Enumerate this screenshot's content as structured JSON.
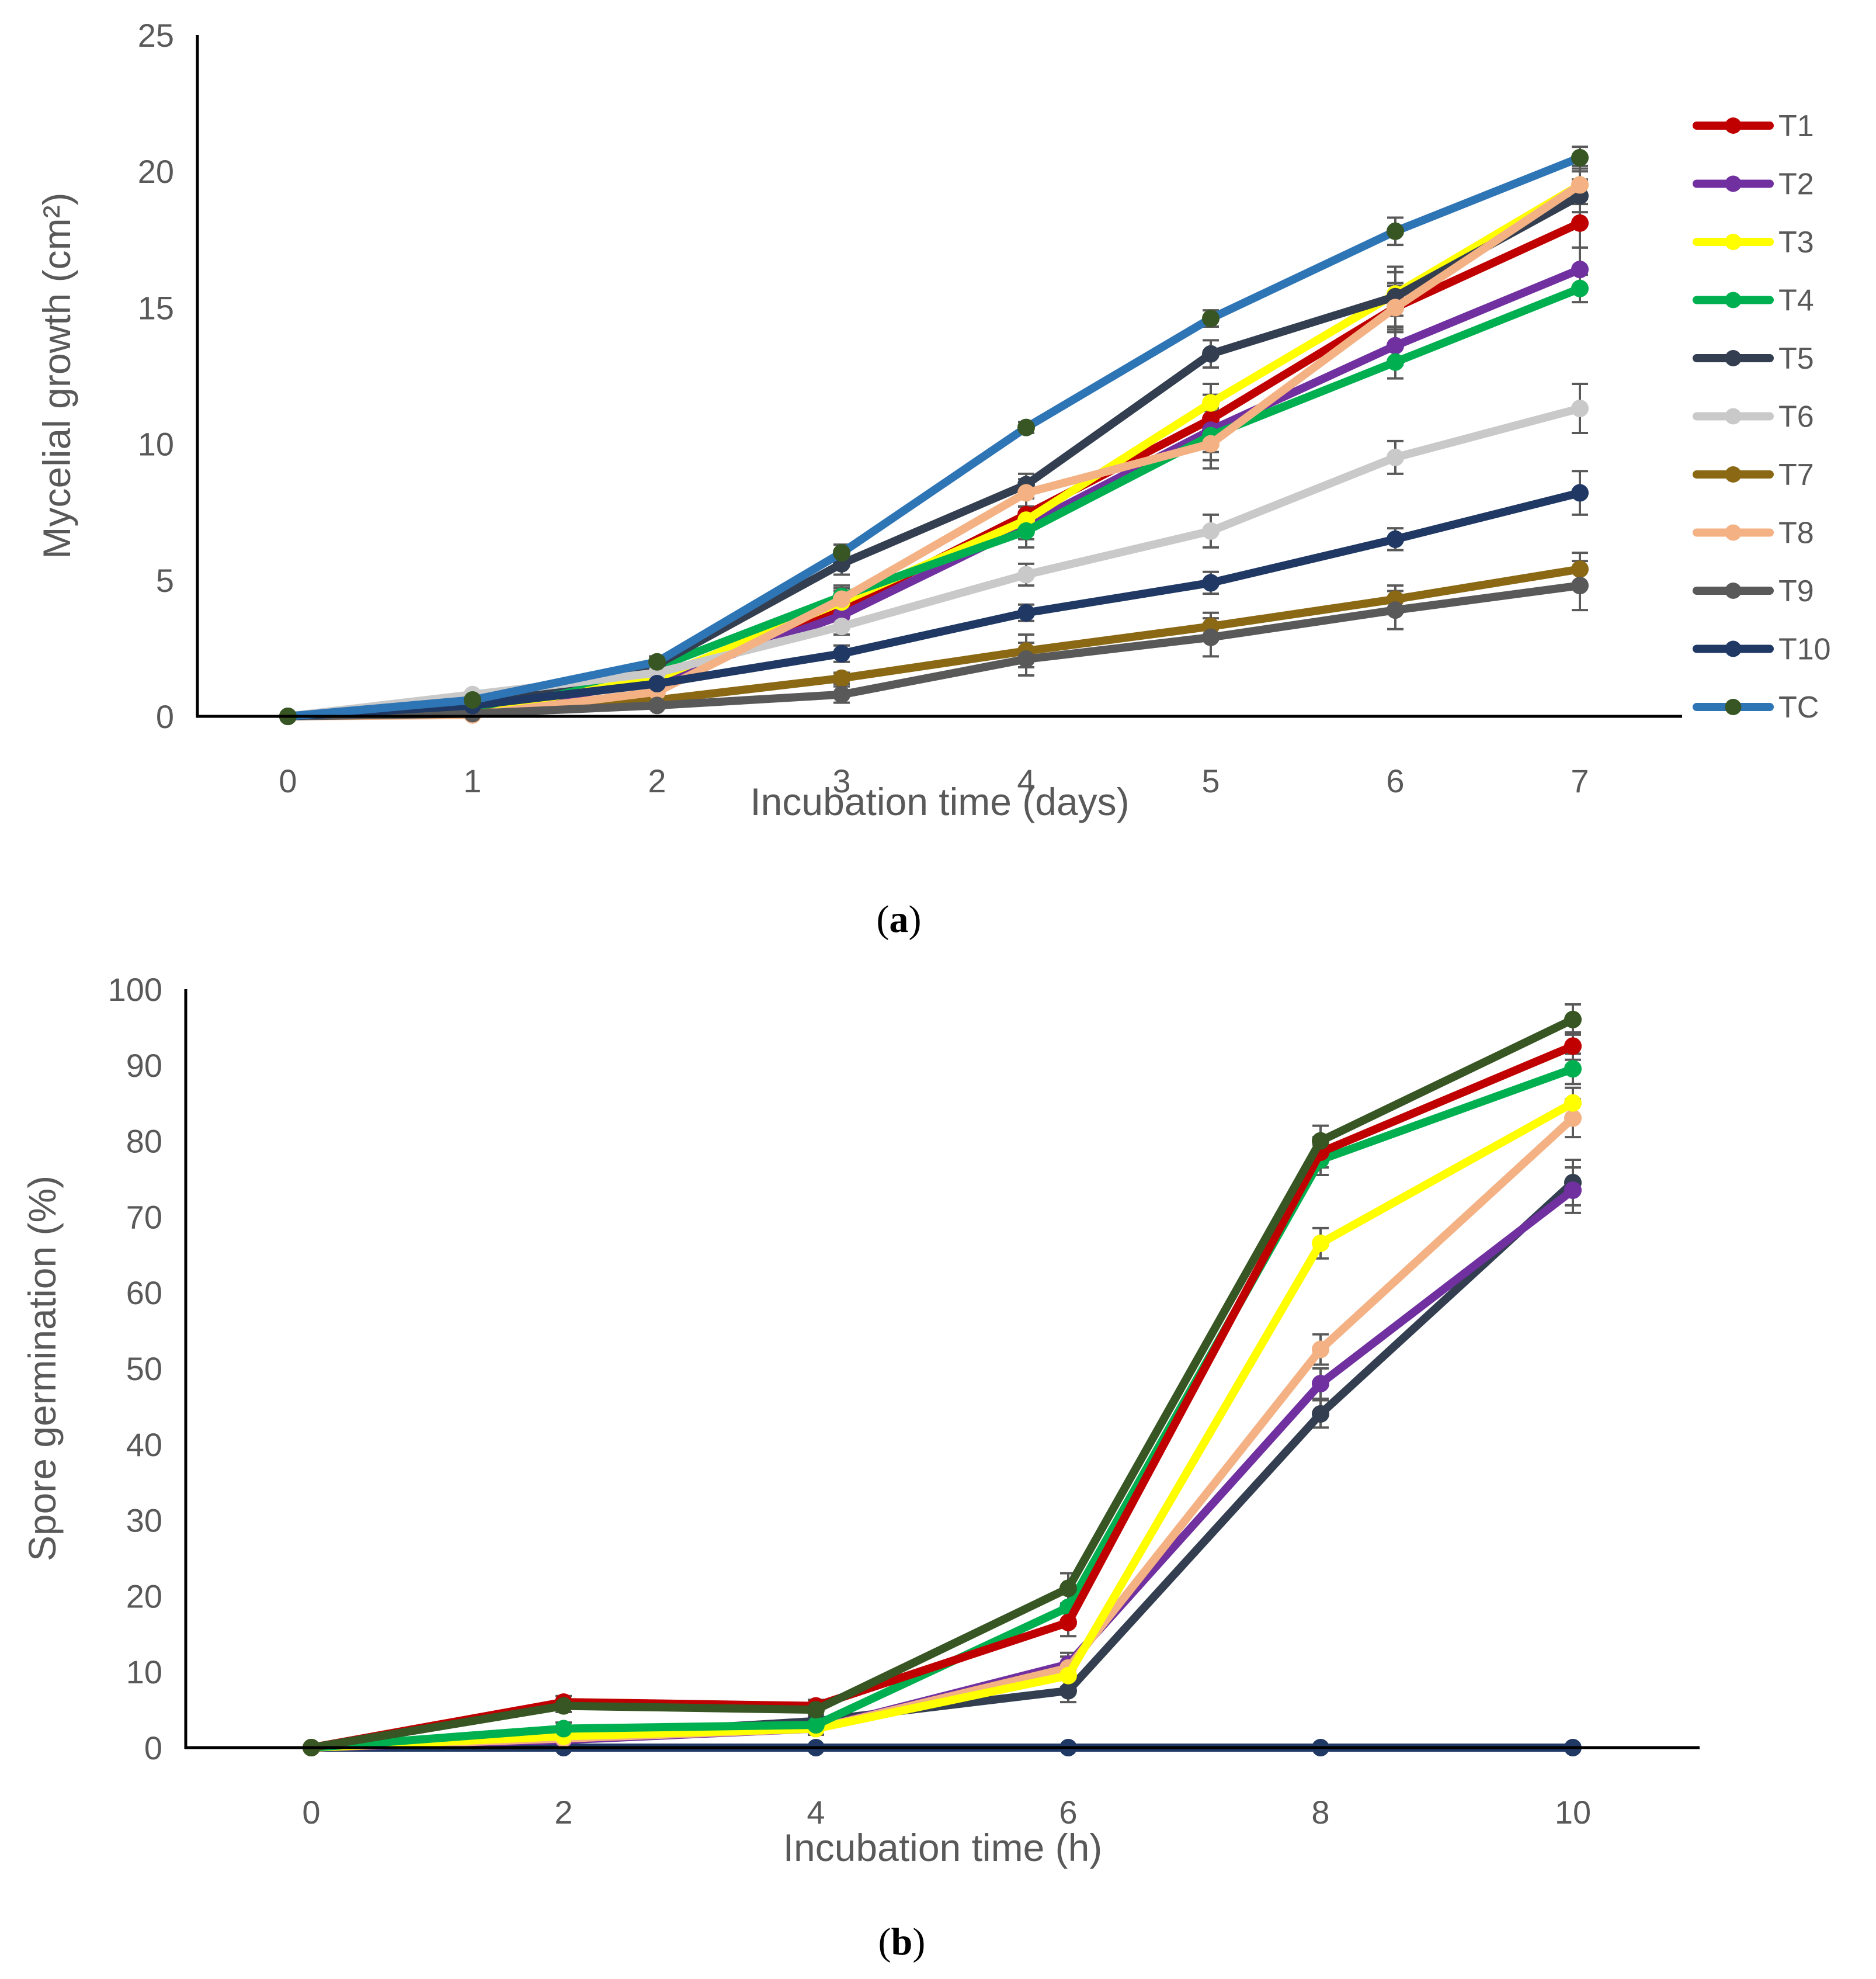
{
  "chart_data": [
    {
      "id": "a",
      "type": "line",
      "caption": "(a)",
      "caption_letter": "a",
      "xlabel": "Incubation time (days)",
      "ylabel": "Mycelial growth (cm²)",
      "x": [
        0,
        1,
        2,
        3,
        4,
        5,
        6,
        7
      ],
      "ylim": [
        0,
        25
      ],
      "yticks": [
        0,
        5,
        10,
        15,
        20,
        25
      ],
      "legend": "right",
      "series": [
        {
          "name": "T1",
          "color": "#C00000",
          "marker": "#C00000",
          "values": [
            0,
            0.2,
            1.3,
            4.0,
            7.4,
            10.9,
            15.0,
            18.1
          ],
          "err": [
            0,
            0.1,
            0.2,
            0.4,
            0.6,
            0.9,
            0.9,
            0.9
          ]
        },
        {
          "name": "T2",
          "color": "#7030A0",
          "marker": "#7030A0",
          "values": [
            0,
            0.2,
            1.3,
            3.7,
            7.0,
            10.5,
            13.6,
            16.4
          ],
          "err": [
            0,
            0.1,
            0.2,
            0.4,
            0.5,
            0.8,
            0.7,
            0.8
          ]
        },
        {
          "name": "T3",
          "color": "#FFFF00",
          "marker": "#FFFF00",
          "values": [
            0,
            0.2,
            1.4,
            4.2,
            7.2,
            11.5,
            15.5,
            19.5
          ],
          "err": [
            0,
            0.1,
            0.2,
            0.4,
            0.5,
            0.7,
            0.8,
            0.7
          ]
        },
        {
          "name": "T4",
          "color": "#00B050",
          "marker": "#00B050",
          "values": [
            0,
            0.3,
            1.8,
            4.4,
            6.8,
            10.3,
            13.0,
            15.7
          ],
          "err": [
            0,
            0.1,
            0.2,
            0.4,
            0.6,
            0.9,
            0.6,
            0.5
          ]
        },
        {
          "name": "T5",
          "color": "#333F50",
          "marker": "#333F50",
          "values": [
            0,
            0.4,
            1.9,
            5.6,
            8.5,
            13.3,
            15.4,
            19.1
          ],
          "err": [
            0,
            0.1,
            0.2,
            0.4,
            0.4,
            0.5,
            1.1,
            0.6
          ]
        },
        {
          "name": "T6",
          "color": "#C9C9C9",
          "marker": "#C9C9C9",
          "values": [
            0,
            0.8,
            1.6,
            3.3,
            5.2,
            6.8,
            9.5,
            11.3
          ],
          "err": [
            0,
            0.1,
            0.2,
            0.3,
            0.4,
            0.6,
            0.6,
            0.9
          ]
        },
        {
          "name": "T7",
          "color": "#8B6914",
          "marker": "#8B6914",
          "values": [
            0,
            0.1,
            0.6,
            1.4,
            2.4,
            3.3,
            4.3,
            5.4
          ],
          "err": [
            0,
            0.05,
            0.1,
            0.2,
            0.6,
            0.5,
            0.5,
            0.6
          ]
        },
        {
          "name": "T8",
          "color": "#F4B183",
          "marker": "#F4B183",
          "values": [
            0,
            0.05,
            0.9,
            4.3,
            8.2,
            10.0,
            15.0,
            19.5
          ],
          "err": [
            0,
            0.05,
            0.2,
            0.4,
            0.5,
            0.9,
            0.8,
            0.5
          ]
        },
        {
          "name": "T9",
          "color": "#595959",
          "marker": "#595959",
          "values": [
            0,
            0.1,
            0.4,
            0.8,
            2.1,
            2.9,
            3.9,
            4.8
          ],
          "err": [
            0,
            0.05,
            0.1,
            0.3,
            0.6,
            0.7,
            0.7,
            0.9
          ]
        },
        {
          "name": "T10",
          "color": "#203864",
          "marker": "#203864",
          "values": [
            0,
            0.4,
            1.2,
            2.3,
            3.8,
            4.9,
            6.5,
            8.2
          ],
          "err": [
            0,
            0.1,
            0.2,
            0.3,
            0.3,
            0.4,
            0.4,
            0.8
          ]
        },
        {
          "name": "TC",
          "color": "#2E75B6",
          "marker": "#375623",
          "values": [
            0,
            0.6,
            2.0,
            6.0,
            10.6,
            14.6,
            17.8,
            20.5
          ],
          "err": [
            0,
            0.1,
            0.2,
            0.3,
            0.2,
            0.3,
            0.5,
            0.4
          ]
        }
      ]
    },
    {
      "id": "b",
      "type": "line",
      "caption": "(b)",
      "caption_letter": "b",
      "xlabel": "Incubation time (h)",
      "ylabel": "Spore germination (%)",
      "x": [
        0,
        2,
        4,
        6,
        8,
        10
      ],
      "ylim": [
        0,
        100
      ],
      "yticks": [
        0,
        10,
        20,
        30,
        40,
        50,
        60,
        70,
        80,
        90,
        100
      ],
      "legend": "none",
      "series": [
        {
          "name": "T10",
          "color": "#203864",
          "marker": "#203864",
          "values": [
            0,
            0,
            0,
            0,
            0,
            0
          ],
          "err": [
            0,
            0,
            0,
            0,
            0,
            0
          ]
        },
        {
          "name": "T5",
          "color": "#333F50",
          "marker": "#333F50",
          "values": [
            0,
            1.5,
            3.5,
            7.5,
            44,
            74.5
          ],
          "err": [
            0,
            0.5,
            0.8,
            1.5,
            1.8,
            3.0
          ]
        },
        {
          "name": "T2",
          "color": "#7030A0",
          "marker": "#7030A0",
          "values": [
            0,
            1,
            2.5,
            11,
            48,
            73.5
          ],
          "err": [
            0,
            0.5,
            0.8,
            1.5,
            2.0,
            3.0
          ]
        },
        {
          "name": "T8",
          "color": "#F4B183",
          "marker": "#F4B183",
          "values": [
            0,
            1.2,
            2.5,
            10.5,
            52.5,
            83
          ],
          "err": [
            0,
            0.5,
            0.8,
            1.5,
            2.0,
            2.5
          ]
        },
        {
          "name": "T3",
          "color": "#FFFF00",
          "marker": "#FFFF00",
          "values": [
            0,
            1.5,
            2.5,
            9.5,
            66.5,
            85
          ],
          "err": [
            0,
            0.5,
            0.8,
            1.5,
            2.0,
            2.0
          ]
        },
        {
          "name": "T4",
          "color": "#00B050",
          "marker": "#00B050",
          "values": [
            0,
            2.5,
            3,
            18.5,
            77.5,
            89.5
          ],
          "err": [
            0,
            0.8,
            0.8,
            1.8,
            2.0,
            2.0
          ]
        },
        {
          "name": "T1",
          "color": "#C00000",
          "marker": "#C00000",
          "values": [
            0,
            6,
            5.5,
            16.5,
            78.5,
            92.5
          ],
          "err": [
            0,
            0.8,
            0.8,
            1.8,
            2.0,
            1.8
          ]
        },
        {
          "name": "TC",
          "color": "#375623",
          "marker": "#375623",
          "values": [
            0,
            5.5,
            5,
            21,
            80,
            96
          ],
          "err": [
            0,
            0.8,
            0.8,
            2.0,
            2.0,
            2.0
          ]
        }
      ]
    }
  ]
}
